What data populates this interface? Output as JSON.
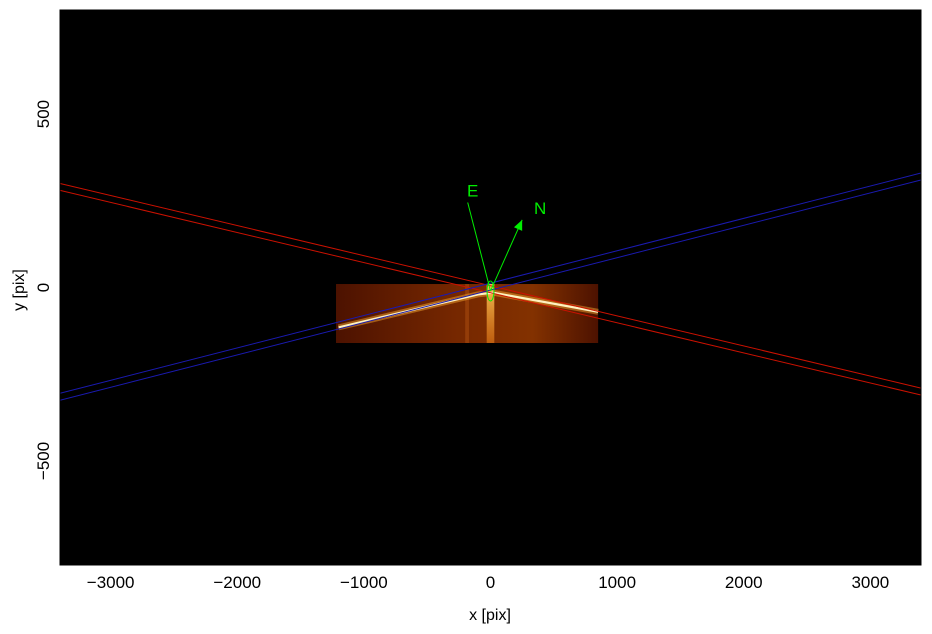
{
  "chart_data": {
    "type": "scatter",
    "title": "",
    "xlabel": "x [pix]",
    "ylabel": "y [pix]",
    "xlim": [
      -3400,
      3400
    ],
    "ylim": [
      -800,
      800
    ],
    "xticks": [
      -3000,
      -2000,
      -1000,
      0,
      1000,
      2000,
      3000
    ],
    "xtick_labels": [
      "−3000",
      "−2000",
      "−1000",
      "0",
      "1000",
      "2000",
      "3000"
    ],
    "yticks": [
      -500,
      0,
      500
    ],
    "ytick_labels": [
      "−500",
      "0",
      "500"
    ],
    "grid": false,
    "background": "#000000",
    "image_region": {
      "x": [
        -1220,
        850
      ],
      "y": [
        -160,
        10
      ]
    },
    "spectral_traces": [
      {
        "name": "",
        "points": [
          [
            -1200,
            -115
          ],
          [
            -100,
            -20
          ],
          [
            20,
            -15
          ],
          [
            850,
            -70
          ]
        ]
      }
    ],
    "slit_lines": [
      {
        "color": "#cc1100",
        "segments": [
          [
            [
              -3400,
              300
            ],
            [
              3400,
              -290
            ]
          ],
          [
            [
              -3400,
              280
            ],
            [
              3400,
              -310
            ]
          ]
        ]
      },
      {
        "color": "#1a1ab0",
        "segments": [
          [
            [
              -3400,
              -305
            ],
            [
              3400,
              330
            ]
          ],
          [
            [
              -3400,
              -325
            ],
            [
              3400,
              310
            ]
          ]
        ]
      }
    ],
    "compass": {
      "color": "#00ee00",
      "origin": [
        0,
        -10
      ],
      "east": {
        "label": "E",
        "tip": [
          -180,
          245
        ]
      },
      "north": {
        "label": "N",
        "tip": [
          250,
          195
        ]
      }
    }
  }
}
